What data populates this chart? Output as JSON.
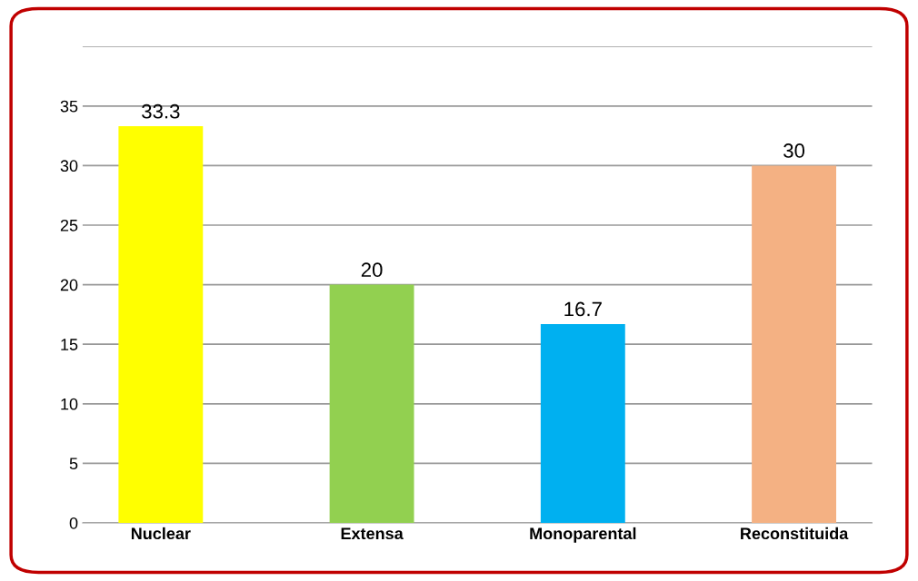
{
  "chart_data": {
    "type": "bar",
    "categories": [
      "Nuclear",
      "Extensa",
      "Monoparental",
      "Reconstituida"
    ],
    "values": [
      33.3,
      20,
      16.7,
      30
    ],
    "colors": [
      "#ffff00",
      "#92d050",
      "#00b0f0",
      "#f4b183"
    ],
    "ylim": [
      0,
      40
    ],
    "yticks": [
      0,
      5,
      10,
      15,
      20,
      25,
      30,
      35,
      {
        "value": 40,
        "label": null
      }
    ],
    "grid": "y",
    "data_labels": true
  }
}
